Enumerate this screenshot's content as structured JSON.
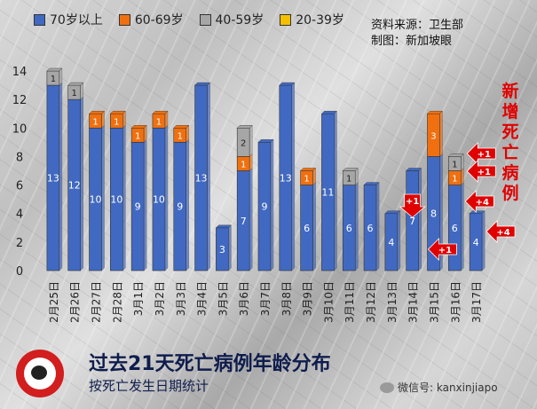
{
  "chart_data": {
    "type": "bar",
    "stacked": true,
    "categories": [
      "2月25日",
      "2月26日",
      "2月27日",
      "2月28日",
      "3月1日",
      "3月2日",
      "3月3日",
      "3月4日",
      "3月5日",
      "3月6日",
      "3月7日",
      "3月8日",
      "3月9日",
      "3月10日",
      "3月11日",
      "3月12日",
      "3月13日",
      "3月14日",
      "3月15日",
      "3月16日",
      "3月17日"
    ],
    "series": [
      {
        "name": "70岁以上",
        "color": "#4169c1",
        "values": [
          13,
          12,
          10,
          10,
          9,
          10,
          9,
          13,
          3,
          7,
          9,
          13,
          6,
          11,
          6,
          6,
          4,
          7,
          8,
          6,
          4
        ]
      },
      {
        "name": "60-69岁",
        "color": "#f07010",
        "values": [
          0,
          0,
          1,
          1,
          1,
          1,
          1,
          0,
          0,
          1,
          0,
          0,
          1,
          0,
          0,
          0,
          0,
          0,
          3,
          1,
          0
        ]
      },
      {
        "name": "40-59岁",
        "color": "#a6a6a6",
        "values": [
          1,
          1,
          0,
          0,
          0,
          0,
          0,
          0,
          0,
          2,
          0,
          0,
          0,
          0,
          1,
          0,
          0,
          0,
          0,
          1,
          0
        ]
      },
      {
        "name": "20-39岁",
        "color": "#f5c000",
        "values": [
          0,
          0,
          0,
          0,
          0,
          0,
          0,
          0,
          0,
          0,
          0,
          0,
          0,
          0,
          0,
          0,
          0,
          0,
          0,
          0,
          0
        ]
      }
    ],
    "ylim": [
      0,
      14
    ],
    "yticks": [
      0,
      2,
      4,
      6,
      8,
      10,
      12,
      14
    ],
    "annotations": [
      {
        "label": "+1",
        "category": "3月14日"
      },
      {
        "label": "+1",
        "category": "3月15日"
      },
      {
        "label": "+1",
        "category": "3月16日"
      },
      {
        "label": "+1",
        "category": "3月16日"
      },
      {
        "label": "+4",
        "category": "3月16日"
      },
      {
        "label": "+4",
        "category": "3月17日"
      }
    ],
    "title": "过去21天死亡病例年龄分布",
    "subtitle": "按死亡发生日期统计"
  },
  "source": {
    "line1": "资料来源：卫生部",
    "line2": "制图：新加坡眼"
  },
  "side_note": "新增死亡病例",
  "wechat": "微信号: kanxinjiapo",
  "logo_text": "新加坡眼"
}
